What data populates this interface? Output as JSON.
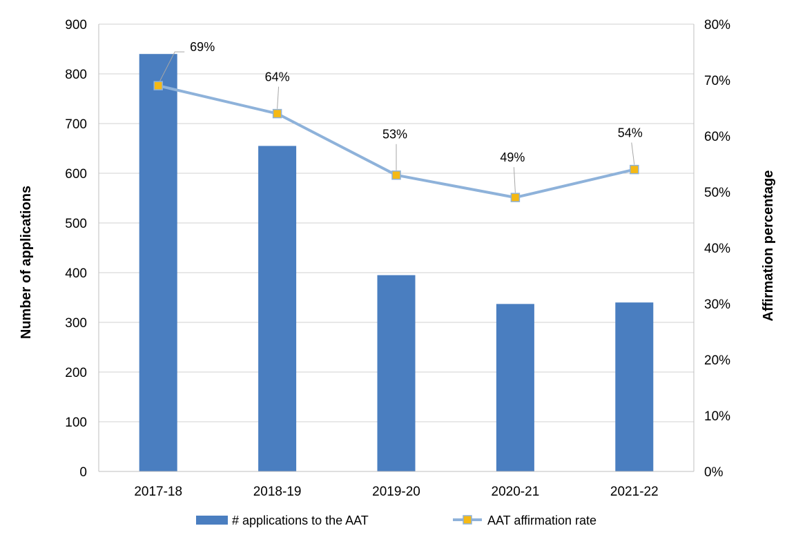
{
  "chart_data": {
    "type": "bar+line",
    "categories": [
      "2017-18",
      "2018-19",
      "2019-20",
      "2020-21",
      "2021-22"
    ],
    "series": [
      {
        "name": "# applications to the AAT",
        "type": "bar",
        "axis": "left",
        "values": [
          840,
          655,
          395,
          337,
          340
        ],
        "color": "#4a7ec0"
      },
      {
        "name": "AAT affirmation rate",
        "type": "line",
        "axis": "right",
        "values": [
          69,
          64,
          53,
          49,
          54
        ],
        "data_labels": [
          "69%",
          "64%",
          "53%",
          "49%",
          "54%"
        ],
        "color": "#8eb2da",
        "marker_color": "#f5b915"
      }
    ],
    "y_left": {
      "label": "Number of applications",
      "ylim": [
        0,
        900
      ],
      "ticks": [
        "0",
        "100",
        "200",
        "300",
        "400",
        "500",
        "600",
        "700",
        "800",
        "900"
      ]
    },
    "y_right": {
      "label": "Affirmation percentage",
      "ylim": [
        0,
        80
      ],
      "ticks": [
        "0%",
        "10%",
        "20%",
        "30%",
        "40%",
        "50%",
        "60%",
        "70%",
        "80%"
      ]
    },
    "grid": true,
    "legend_position": "bottom"
  }
}
